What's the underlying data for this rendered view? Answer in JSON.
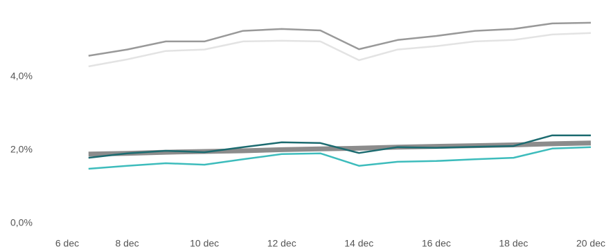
{
  "chart_data": {
    "type": "line",
    "categories": [
      "6 dec",
      null,
      "8 dec",
      null,
      "10 dec",
      null,
      "12 dec",
      null,
      "14 dec",
      null,
      "16 dec",
      null,
      "18 dec",
      null,
      "20 dec"
    ],
    "series": [
      {
        "color": "#999999",
        "width": 2.5,
        "values": [
          null,
          4.57,
          4.74,
          4.96,
          4.96,
          5.25,
          5.3,
          5.26,
          4.75,
          5.0,
          5.11,
          5.25,
          5.3,
          5.45,
          5.47
        ]
      },
      {
        "color": "#e3e3e3",
        "width": 2.5,
        "values": [
          null,
          4.28,
          4.47,
          4.7,
          4.74,
          4.96,
          4.98,
          4.96,
          4.45,
          4.74,
          4.83,
          4.96,
          5.0,
          5.15,
          5.19
        ]
      },
      {
        "color": "#8c8c8c",
        "width": 7,
        "values": [
          null,
          1.89,
          1.91,
          1.94,
          1.96,
          1.98,
          2.01,
          2.03,
          2.05,
          2.08,
          2.1,
          2.12,
          2.14,
          2.17,
          2.19
        ]
      },
      {
        "color": "#1c6b70",
        "width": 2.5,
        "values": [
          null,
          1.79,
          1.91,
          1.98,
          1.94,
          2.08,
          2.21,
          2.19,
          1.92,
          2.08,
          2.06,
          2.09,
          2.11,
          2.4,
          2.4
        ]
      },
      {
        "color": "#3dbcbc",
        "width": 2.5,
        "values": [
          null,
          1.49,
          1.57,
          1.64,
          1.6,
          1.75,
          1.89,
          1.91,
          1.57,
          1.68,
          1.7,
          1.75,
          1.79,
          2.04,
          2.08
        ]
      }
    ],
    "ylim": [
      0,
      6.09
    ],
    "yticks": [
      {
        "value": 0,
        "label": "0,0%"
      },
      {
        "value": 2,
        "label": "2,0%"
      },
      {
        "value": 4,
        "label": "4,0%"
      }
    ],
    "grid": false
  }
}
